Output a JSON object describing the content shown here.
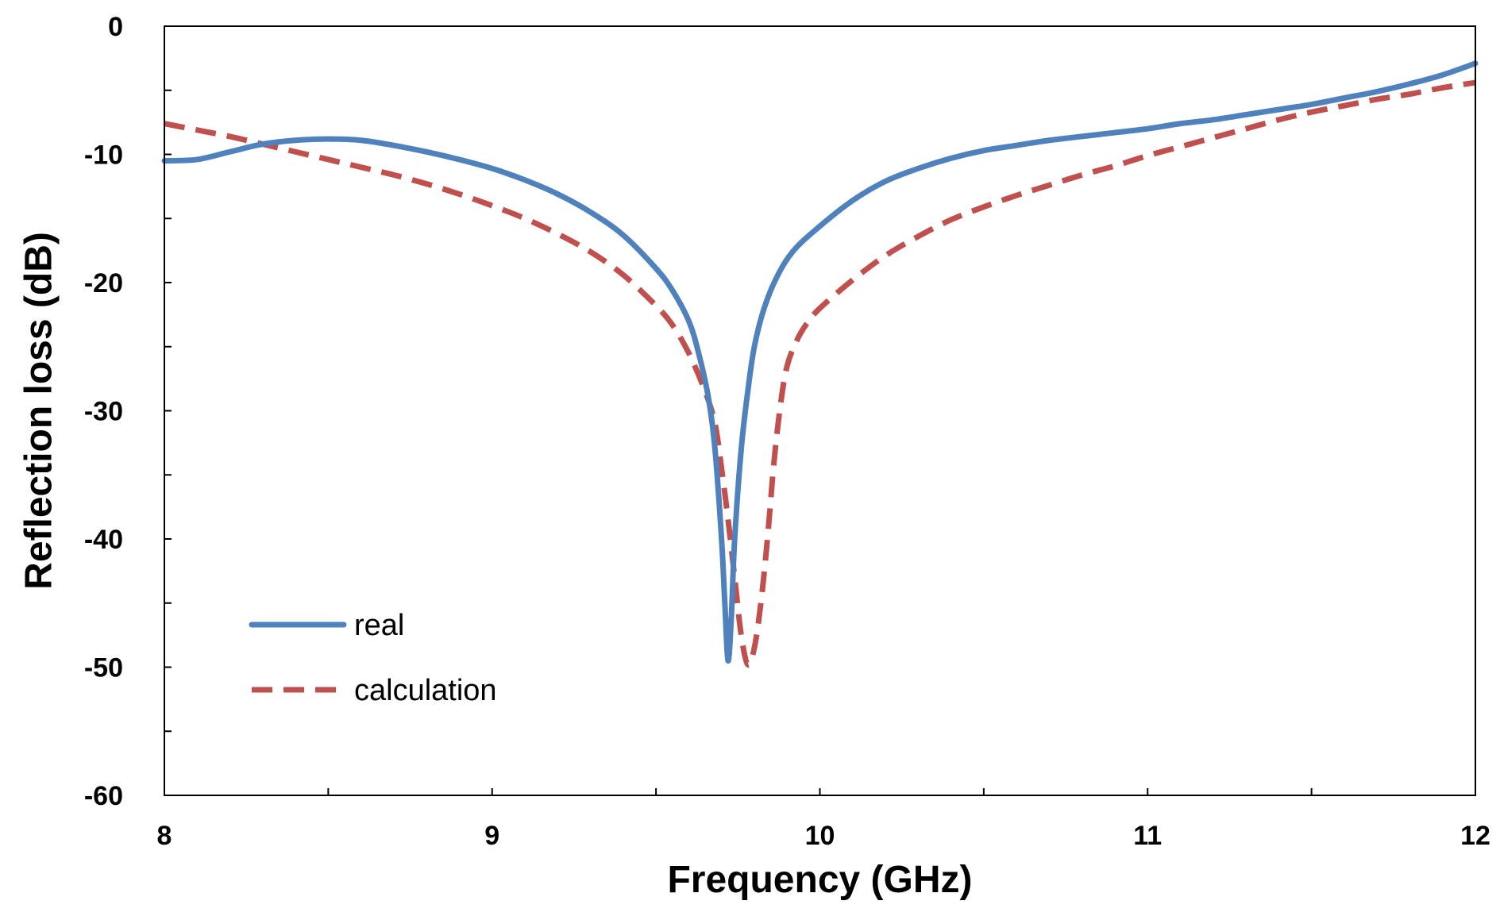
{
  "chart_data": {
    "type": "line",
    "title": "",
    "xlabel": "Frequency (GHz)",
    "ylabel": "Reflection loss (dB)",
    "xlim": [
      8,
      12
    ],
    "ylim": [
      -60,
      0
    ],
    "xticks": [
      8,
      9,
      10,
      11,
      12
    ],
    "yticks": [
      0,
      -10,
      -20,
      -30,
      -40,
      -50,
      -60
    ],
    "xtick_labels": [
      "8",
      "9",
      "10",
      "11",
      "12"
    ],
    "ytick_labels": [
      "0",
      "-10",
      "-20",
      "-30",
      "-40",
      "-50",
      "-60"
    ],
    "x_minor_step": 0.5,
    "y_minor_step": 5,
    "grid": false,
    "legend_position": "bottom-left",
    "series": [
      {
        "name": "real",
        "color": "#4F81BD",
        "style": "solid",
        "points": [
          [
            8.0,
            -10.5
          ],
          [
            8.1,
            -10.4
          ],
          [
            8.2,
            -9.8
          ],
          [
            8.3,
            -9.2
          ],
          [
            8.4,
            -8.9
          ],
          [
            8.5,
            -8.8
          ],
          [
            8.6,
            -8.9
          ],
          [
            8.7,
            -9.3
          ],
          [
            8.8,
            -9.8
          ],
          [
            8.9,
            -10.4
          ],
          [
            9.0,
            -11.1
          ],
          [
            9.1,
            -12.0
          ],
          [
            9.2,
            -13.1
          ],
          [
            9.3,
            -14.5
          ],
          [
            9.4,
            -16.3
          ],
          [
            9.5,
            -18.9
          ],
          [
            9.55,
            -20.6
          ],
          [
            9.6,
            -23.0
          ],
          [
            9.63,
            -25.5
          ],
          [
            9.66,
            -29.0
          ],
          [
            9.68,
            -33.0
          ],
          [
            9.7,
            -40.0
          ],
          [
            9.71,
            -45.0
          ],
          [
            9.72,
            -49.5
          ],
          [
            9.73,
            -46.0
          ],
          [
            9.74,
            -40.0
          ],
          [
            9.76,
            -33.0
          ],
          [
            9.78,
            -28.5
          ],
          [
            9.8,
            -25.0
          ],
          [
            9.83,
            -22.0
          ],
          [
            9.87,
            -19.5
          ],
          [
            9.92,
            -17.5
          ],
          [
            10.0,
            -15.6
          ],
          [
            10.1,
            -13.6
          ],
          [
            10.2,
            -12.1
          ],
          [
            10.3,
            -11.1
          ],
          [
            10.4,
            -10.3
          ],
          [
            10.5,
            -9.7
          ],
          [
            10.6,
            -9.3
          ],
          [
            10.7,
            -8.9
          ],
          [
            10.8,
            -8.6
          ],
          [
            10.9,
            -8.3
          ],
          [
            11.0,
            -8.0
          ],
          [
            11.1,
            -7.6
          ],
          [
            11.2,
            -7.3
          ],
          [
            11.3,
            -6.9
          ],
          [
            11.4,
            -6.5
          ],
          [
            11.5,
            -6.1
          ],
          [
            11.6,
            -5.6
          ],
          [
            11.7,
            -5.1
          ],
          [
            11.8,
            -4.5
          ],
          [
            11.9,
            -3.8
          ],
          [
            12.0,
            -2.9
          ]
        ]
      },
      {
        "name": "calculation",
        "color": "#C0504D",
        "style": "dashed",
        "points": [
          [
            8.0,
            -7.6
          ],
          [
            8.1,
            -8.1
          ],
          [
            8.2,
            -8.6
          ],
          [
            8.3,
            -9.2
          ],
          [
            8.4,
            -9.8
          ],
          [
            8.5,
            -10.4
          ],
          [
            8.6,
            -11.0
          ],
          [
            8.7,
            -11.6
          ],
          [
            8.8,
            -12.3
          ],
          [
            8.9,
            -13.1
          ],
          [
            9.0,
            -14.0
          ],
          [
            9.1,
            -15.0
          ],
          [
            9.2,
            -16.2
          ],
          [
            9.3,
            -17.6
          ],
          [
            9.4,
            -19.4
          ],
          [
            9.5,
            -21.8
          ],
          [
            9.55,
            -23.3
          ],
          [
            9.6,
            -25.5
          ],
          [
            9.65,
            -28.5
          ],
          [
            9.68,
            -31.0
          ],
          [
            9.7,
            -34.5
          ],
          [
            9.72,
            -38.5
          ],
          [
            9.74,
            -43.0
          ],
          [
            9.76,
            -47.5
          ],
          [
            9.78,
            -49.8
          ],
          [
            9.8,
            -48.5
          ],
          [
            9.82,
            -45.0
          ],
          [
            9.84,
            -40.0
          ],
          [
            9.86,
            -34.0
          ],
          [
            9.88,
            -29.5
          ],
          [
            9.9,
            -26.5
          ],
          [
            9.93,
            -24.5
          ],
          [
            9.96,
            -23.2
          ],
          [
            10.0,
            -22.0
          ],
          [
            10.1,
            -19.8
          ],
          [
            10.2,
            -17.9
          ],
          [
            10.3,
            -16.4
          ],
          [
            10.4,
            -15.1
          ],
          [
            10.5,
            -14.1
          ],
          [
            10.6,
            -13.2
          ],
          [
            10.7,
            -12.4
          ],
          [
            10.8,
            -11.6
          ],
          [
            10.9,
            -10.9
          ],
          [
            11.0,
            -10.1
          ],
          [
            11.1,
            -9.4
          ],
          [
            11.2,
            -8.7
          ],
          [
            11.3,
            -8.0
          ],
          [
            11.4,
            -7.3
          ],
          [
            11.5,
            -6.7
          ],
          [
            11.6,
            -6.2
          ],
          [
            11.7,
            -5.7
          ],
          [
            11.8,
            -5.3
          ],
          [
            11.9,
            -4.8
          ],
          [
            12.0,
            -4.4
          ]
        ]
      }
    ]
  }
}
